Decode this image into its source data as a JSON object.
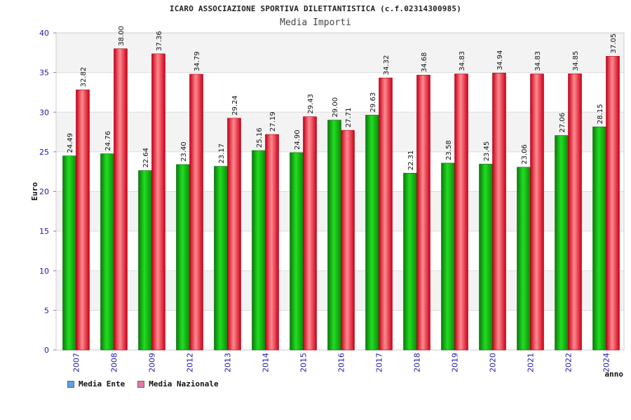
{
  "chart_data": {
    "type": "bar",
    "title": "ICARO ASSOCIAZIONE SPORTIVA DILETTANTISTICA (c.f.02314300985)",
    "subtitle": "Media Importi",
    "xlabel": "anno",
    "ylabel": "Euro",
    "ylim": [
      0,
      40
    ],
    "yticks": [
      0,
      5,
      10,
      15,
      20,
      25,
      30,
      35,
      40
    ],
    "categories": [
      "2007",
      "2008",
      "2009",
      "2012",
      "2013",
      "2014",
      "2015",
      "2016",
      "2017",
      "2018",
      "2019",
      "2020",
      "2021",
      "2022",
      "2024"
    ],
    "series": [
      {
        "name": "Media Ente",
        "color": "#1fbf1f",
        "legend_color": "#5aa0e8",
        "values": [
          24.49,
          24.76,
          22.64,
          23.4,
          23.17,
          25.16,
          24.9,
          29.0,
          29.63,
          22.31,
          23.58,
          23.45,
          23.06,
          27.06,
          28.15
        ],
        "labels": [
          "24.49",
          "24.76",
          "22.64",
          "23.40",
          "23.17",
          "25.16",
          "24.90",
          "29.00",
          "29.63",
          "22.31",
          "23.58",
          "23.45",
          "23.06",
          "27.06",
          "28.15"
        ]
      },
      {
        "name": "Media Nazionale",
        "color": "#ee2233",
        "legend_color": "#e07aa8",
        "values": [
          32.82,
          38.0,
          37.36,
          34.79,
          29.24,
          27.19,
          29.43,
          27.71,
          34.32,
          34.68,
          34.83,
          34.94,
          34.83,
          34.85,
          37.05
        ],
        "labels": [
          "32.82",
          "38.00",
          "37.36",
          "34.79",
          "29.24",
          "27.19",
          "29.43",
          "27.71",
          "34.32",
          "34.68",
          "34.83",
          "34.94",
          "34.83",
          "34.85",
          "37.05"
        ]
      }
    ],
    "grid": true,
    "legend_position": "bottom-left"
  }
}
